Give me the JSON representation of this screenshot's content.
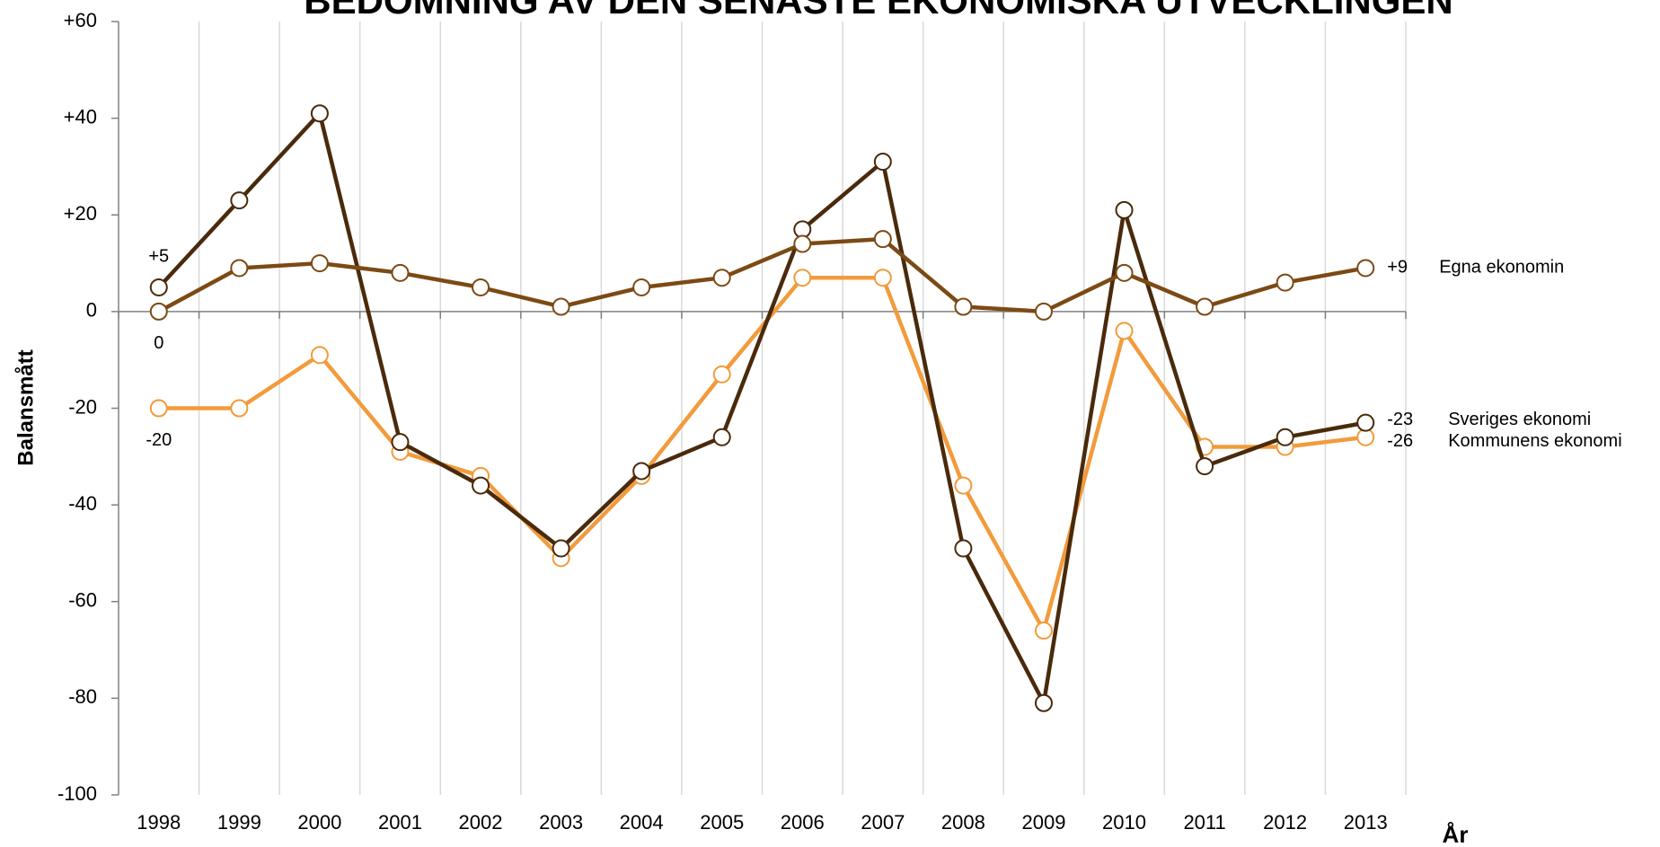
{
  "chart_data": {
    "type": "line",
    "title": "BEDÖMNING AV DEN SENASTE EKONOMISKA UTVECKLINGEN",
    "y_label": "Balansmått",
    "x_label": "År",
    "categories": [
      "1998",
      "1999",
      "2000",
      "2001",
      "2002",
      "2003",
      "2004",
      "2005",
      "2006",
      "2007",
      "2008",
      "2009",
      "2010",
      "2011",
      "2012",
      "2013"
    ],
    "ylim": [
      -100,
      60
    ],
    "yticks": [
      {
        "value": 60,
        "label": "+60"
      },
      {
        "value": 40,
        "label": "+40"
      },
      {
        "value": 20,
        "label": "+20"
      },
      0,
      -20,
      -40,
      -60,
      -80,
      -100
    ],
    "grid": true,
    "series": [
      {
        "name": "Kommunens ekonomi",
        "color": "#f29b3c",
        "values": [
          -20,
          -20,
          -9,
          -29,
          -34,
          -51,
          -34,
          -13,
          7,
          7,
          -36,
          -66,
          -4,
          -28,
          -28,
          -26
        ],
        "value_labels": [
          "-20",
          null,
          null,
          null,
          null,
          null,
          null,
          null,
          null,
          null,
          null,
          null,
          null,
          null,
          null,
          "-26"
        ]
      },
      {
        "name": "Sveriges ekonomi",
        "color": "#4a2a0c",
        "values": [
          5,
          23,
          41,
          -27,
          -36,
          -49,
          -33,
          -26,
          17,
          31,
          -49,
          -81,
          21,
          -32,
          -26,
          -23
        ],
        "value_labels": [
          "+5",
          null,
          null,
          null,
          null,
          null,
          null,
          null,
          null,
          null,
          null,
          null,
          null,
          null,
          null,
          "-23"
        ]
      },
      {
        "name": "Egna ekonomin",
        "color": "#7c4a14",
        "values": [
          0,
          9,
          10,
          8,
          5,
          1,
          5,
          7,
          14,
          15,
          1,
          0,
          8,
          1,
          6,
          9
        ],
        "value_labels": [
          "0",
          null,
          null,
          null,
          null,
          null,
          null,
          null,
          null,
          null,
          null,
          null,
          null,
          null,
          null,
          "+9"
        ]
      }
    ]
  }
}
